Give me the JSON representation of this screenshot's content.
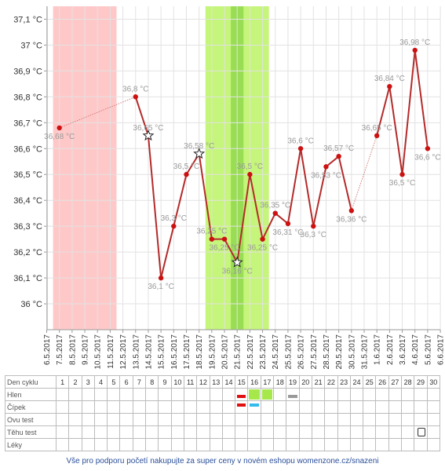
{
  "chart_data": {
    "type": "line",
    "ylim": [
      35.9,
      37.15
    ],
    "y_ticks": [
      "37,1 °C",
      "37 °C",
      "36,9 °C",
      "36,8 °C",
      "36,7 °C",
      "36,6 °C",
      "36,5 °C",
      "36,4 °C",
      "36,3 °C",
      "36,2 °C",
      "36,1 °C",
      "36 °C"
    ],
    "y_tick_values": [
      37.1,
      37.0,
      36.9,
      36.8,
      36.7,
      36.6,
      36.5,
      36.4,
      36.3,
      36.2,
      36.1,
      36.0
    ],
    "dates": [
      "6.5.2017",
      "7.5.2017",
      "8.5.2017",
      "9.5.2017",
      "10.5.2017",
      "11.5.2017",
      "12.5.2017",
      "13.5.2017",
      "14.5.2017",
      "15.5.2017",
      "16.5.2017",
      "17.5.2017",
      "18.5.2017",
      "19.5.2017",
      "20.5.2017",
      "21.5.2017",
      "22.5.2017",
      "23.5.2017",
      "24.5.2017",
      "25.5.2017",
      "26.5.2017",
      "27.5.2017",
      "28.5.2017",
      "29.5.2017",
      "30.5.2017",
      "31.5.2017",
      "1.6.2017",
      "2.6.2017",
      "3.6.2017",
      "4.6.2017",
      "5.6.2017",
      "6.6.2017"
    ],
    "bands": [
      {
        "from_index": 0.5,
        "to_index": 5.5,
        "color": "#ffc8c8"
      },
      {
        "from_index": 12.5,
        "to_index": 17.5,
        "color": "#c5f57a"
      },
      {
        "from_index": 14.5,
        "to_index": 15.5,
        "color": "#99dd55"
      }
    ],
    "points": [
      {
        "i": 1,
        "v": 36.68,
        "label": "36,68 °C",
        "label_pos": "below"
      },
      {
        "i": 7,
        "v": 36.8,
        "label": "36,8 °C",
        "label_pos": "above"
      },
      {
        "i": 8,
        "v": 36.65,
        "label": "36,65 °C",
        "label_pos": "above",
        "marker": "star"
      },
      {
        "i": 9,
        "v": 36.1,
        "label": "36,1 °C",
        "label_pos": "below"
      },
      {
        "i": 10,
        "v": 36.3,
        "label": "36,3 °C",
        "label_pos": "above"
      },
      {
        "i": 11,
        "v": 36.5,
        "label": "36,5 °C",
        "label_pos": "above"
      },
      {
        "i": 12,
        "v": 36.58,
        "label": "36,58 °C",
        "label_pos": "above",
        "marker": "star"
      },
      {
        "i": 13,
        "v": 36.25,
        "label": "36,25 °C",
        "label_pos": "above"
      },
      {
        "i": 14,
        "v": 36.25,
        "label": "36,25 °C",
        "label_pos": "below"
      },
      {
        "i": 15,
        "v": 36.16,
        "label": "36,16 °C",
        "label_pos": "below",
        "marker": "star"
      },
      {
        "i": 16,
        "v": 36.5,
        "label": "36,5 °C",
        "label_pos": "above"
      },
      {
        "i": 17,
        "v": 36.25,
        "label": "36,25 °C",
        "label_pos": "below"
      },
      {
        "i": 18,
        "v": 36.35,
        "label": "36,35 °C",
        "label_pos": "above"
      },
      {
        "i": 19,
        "v": 36.31,
        "label": "36,31 °C",
        "label_pos": "below"
      },
      {
        "i": 20,
        "v": 36.6,
        "label": "36,6 °C",
        "label_pos": "above"
      },
      {
        "i": 21,
        "v": 36.3,
        "label": "36,3 °C",
        "label_pos": "below"
      },
      {
        "i": 22,
        "v": 36.53,
        "label": "36,53 °C",
        "label_pos": "below"
      },
      {
        "i": 23,
        "v": 36.57,
        "label": "36,57 °C",
        "label_pos": "above"
      },
      {
        "i": 24,
        "v": 36.36,
        "label": "36,36 °C",
        "label_pos": "below"
      },
      {
        "i": 26,
        "v": 36.65,
        "label": "36,65 °C",
        "label_pos": "above"
      },
      {
        "i": 27,
        "v": 36.84,
        "label": "36,84 °C",
        "label_pos": "above"
      },
      {
        "i": 28,
        "v": 36.5,
        "label": "36,5 °C",
        "label_pos": "below"
      },
      {
        "i": 29,
        "v": 36.98,
        "label": "36,98 °C",
        "label_pos": "above"
      },
      {
        "i": 30,
        "v": 36.6,
        "label": "36,6 °C",
        "label_pos": "below"
      }
    ],
    "dotted_segments": [
      [
        1,
        7
      ],
      [
        24,
        26
      ]
    ],
    "line_color": "#b52a2a",
    "dot_color": "#cc1111",
    "label_color": "#999999",
    "grid": true
  },
  "table": {
    "row_labels": [
      "Den cyklu",
      "Hlen",
      "Čípek",
      "Ovu test",
      "Těhu test",
      "Léky"
    ],
    "days": [
      "1",
      "2",
      "3",
      "4",
      "5",
      "6",
      "7",
      "8",
      "9",
      "10",
      "11",
      "12",
      "13",
      "14",
      "15",
      "16",
      "17",
      "18",
      "19",
      "20",
      "21",
      "22",
      "23",
      "24",
      "25",
      "26",
      "27",
      "28",
      "29",
      "30"
    ],
    "marks": [
      {
        "row": 1,
        "day": 15,
        "type": "bar",
        "color": "#e01010"
      },
      {
        "row": 1,
        "day": 16,
        "type": "block",
        "color": "#a6e84a"
      },
      {
        "row": 1,
        "day": 17,
        "type": "block",
        "color": "#a6e84a"
      },
      {
        "row": 1,
        "day": 19,
        "type": "bar",
        "color": "#999999"
      },
      {
        "row": 2,
        "day": 15,
        "type": "bar",
        "color": "#e01010"
      },
      {
        "row": 2,
        "day": 16,
        "type": "bar",
        "color": "#33bbee"
      },
      {
        "row": 4,
        "day": 29,
        "type": "icon",
        "color": "#333333"
      }
    ]
  },
  "footer": {
    "text": "Vše pro podporu početí nakupujte za super ceny v novém eshopu womenzone.cz/snazeni"
  }
}
